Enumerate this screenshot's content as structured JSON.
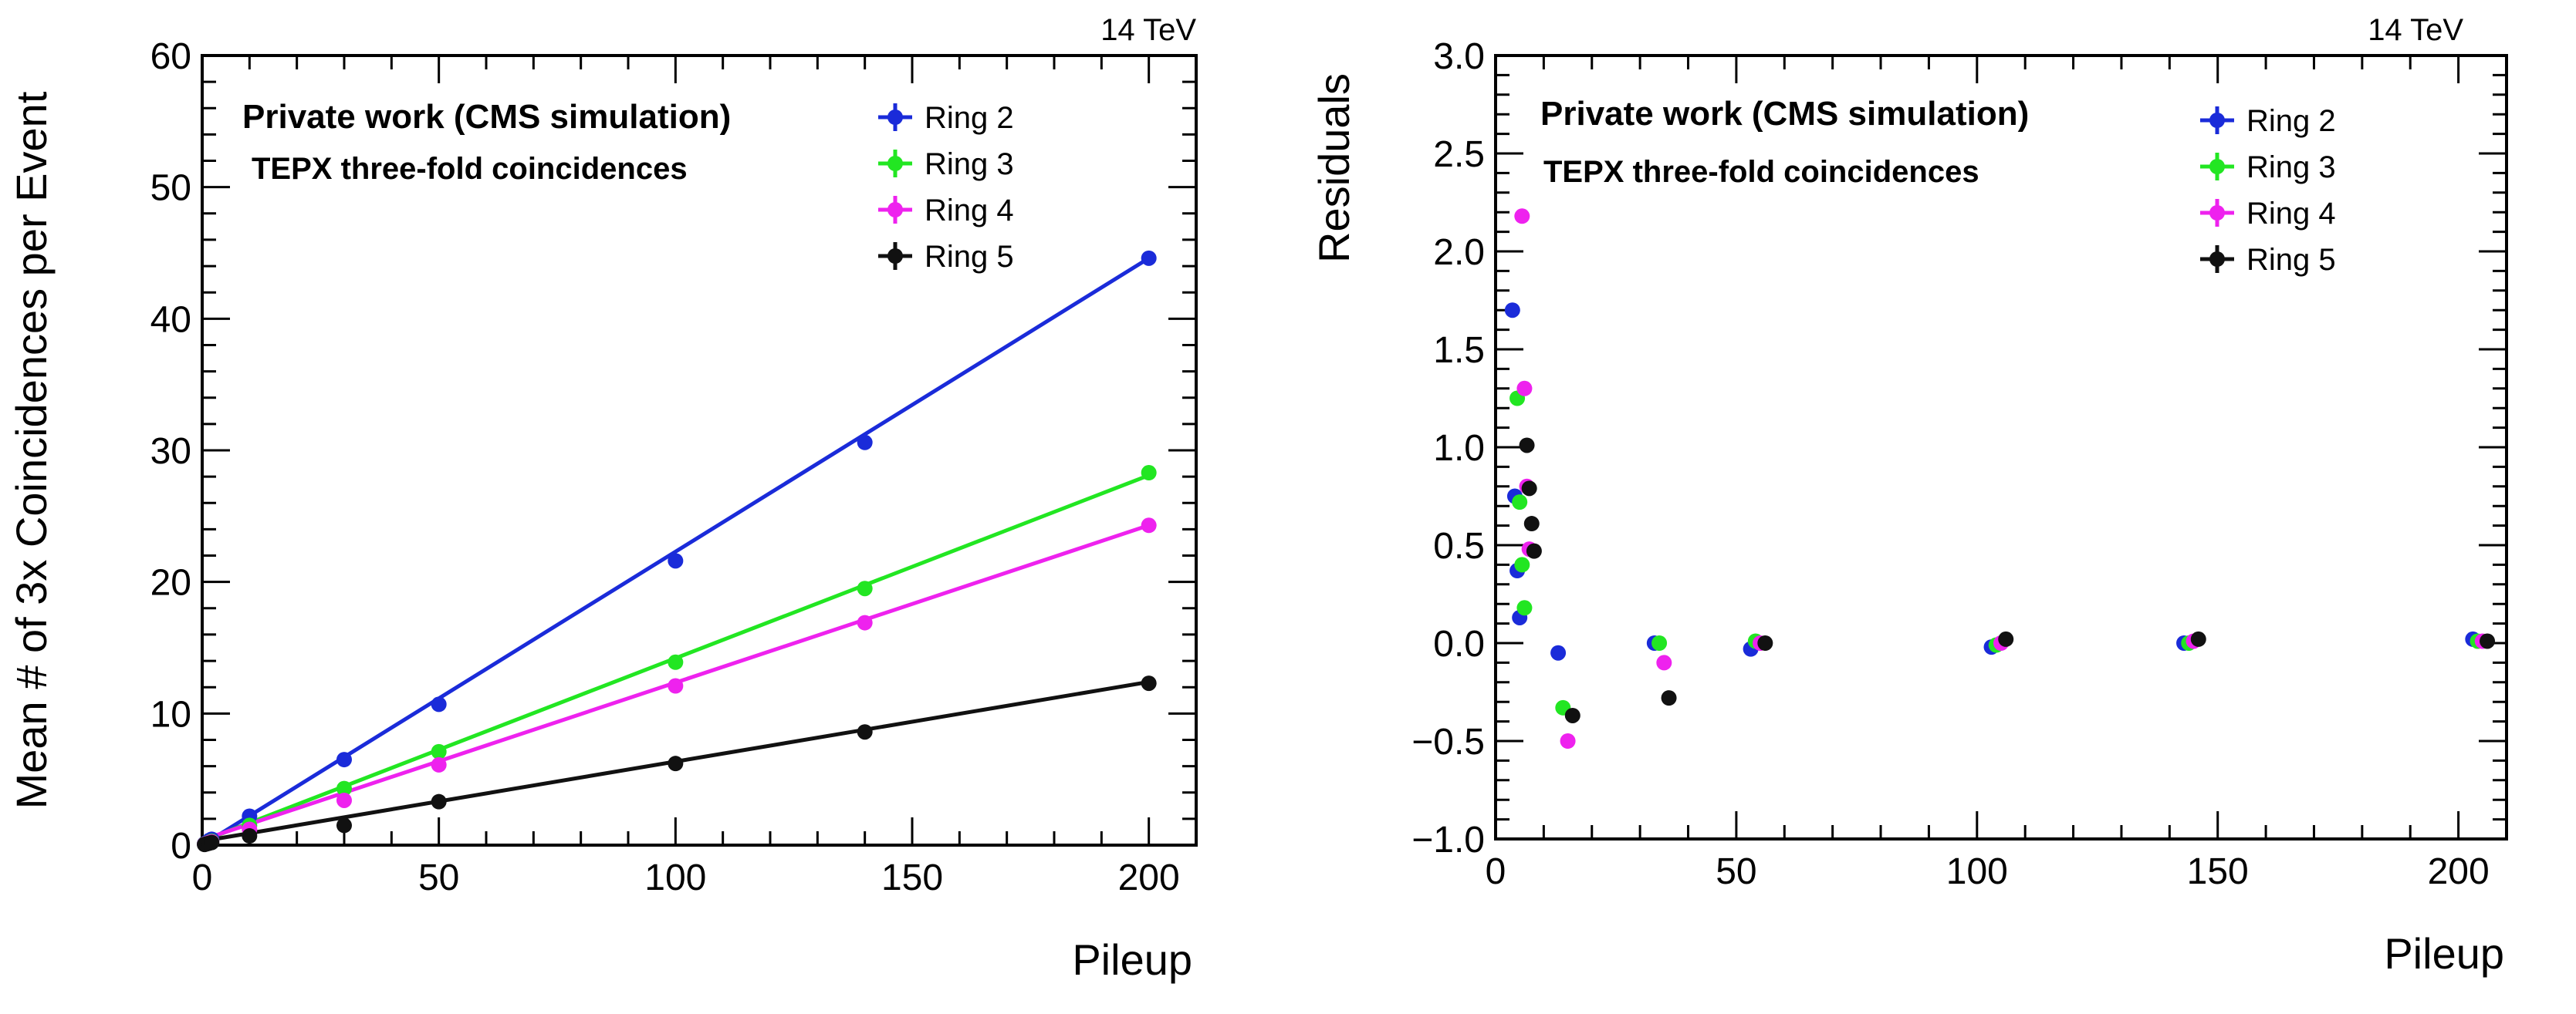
{
  "colors": {
    "ring2": "#1a2bd9",
    "ring3": "#22e622",
    "ring4": "#ee22ee",
    "ring5": "#111111"
  },
  "chart_data": [
    {
      "type": "scatter",
      "energy_label": "14 TeV",
      "notes": [
        "Private work (CMS simulation)",
        "TEPX three-fold coincidences"
      ],
      "xlabel": "Pileup",
      "ylabel": "Mean # of 3x Coincidences per Event",
      "xlim": [
        0,
        210
      ],
      "ylim": [
        0,
        60
      ],
      "xticks": [
        0,
        50,
        100,
        150,
        200
      ],
      "yticks": [
        0,
        10,
        20,
        30,
        40,
        50,
        60
      ],
      "legend_position": "top-right",
      "fit_lines": true,
      "series": [
        {
          "name": "Ring 2",
          "color_key": "ring2",
          "x": [
            0.5,
            1,
            1.5,
            2,
            10,
            30,
            50,
            100,
            140,
            200
          ],
          "y": [
            0.1,
            0.2,
            0.35,
            0.45,
            2.2,
            6.5,
            10.7,
            21.6,
            30.6,
            44.6
          ],
          "fit": [
            0,
            0,
            200,
            44.6
          ]
        },
        {
          "name": "Ring 3",
          "color_key": "ring3",
          "x": [
            0.5,
            1,
            1.5,
            2,
            10,
            30,
            50,
            100,
            140,
            200
          ],
          "y": [
            0.08,
            0.15,
            0.22,
            0.3,
            1.5,
            4.3,
            7.1,
            13.9,
            19.5,
            28.3
          ],
          "fit": [
            0,
            0.3,
            200,
            28.1
          ]
        },
        {
          "name": "Ring 4",
          "color_key": "ring4",
          "x": [
            0.5,
            1,
            1.5,
            2,
            10,
            30,
            50,
            100,
            140,
            200
          ],
          "y": [
            0.07,
            0.13,
            0.2,
            0.26,
            1.2,
            3.4,
            6.1,
            12.1,
            16.9,
            24.3
          ],
          "fit": [
            0,
            0.4,
            200,
            24.3
          ]
        },
        {
          "name": "Ring 5",
          "color_key": "ring5",
          "x": [
            0.5,
            1,
            1.5,
            2,
            10,
            30,
            50,
            100,
            140,
            200
          ],
          "y": [
            0.05,
            0.1,
            0.15,
            0.2,
            0.7,
            1.5,
            3.3,
            6.2,
            8.6,
            12.3
          ],
          "fit": [
            0,
            0.3,
            200,
            12.4
          ]
        }
      ]
    },
    {
      "type": "scatter",
      "energy_label": "14 TeV",
      "notes": [
        "Private work (CMS simulation)",
        "TEPX three-fold coincidences"
      ],
      "xlabel": "Pileup",
      "ylabel": "Residuals",
      "xlim": [
        0,
        210
      ],
      "ylim": [
        -1.0,
        3.0
      ],
      "xticks": [
        0,
        50,
        100,
        150,
        200
      ],
      "yticks": [
        -1.0,
        -0.5,
        0.0,
        0.5,
        1.0,
        1.5,
        2.0,
        2.5,
        3.0
      ],
      "ytick_labels": [
        "−1.0",
        "−0.5",
        "0.0",
        "0.5",
        "1.0",
        "1.5",
        "2.0",
        "2.5",
        "3.0"
      ],
      "legend_position": "top-right",
      "series": [
        {
          "name": "Ring 2",
          "color_key": "ring2",
          "x": [
            3.5,
            4,
            4.5,
            5,
            13,
            33,
            53,
            103,
            143,
            203
          ],
          "y": [
            1.7,
            0.75,
            0.37,
            0.13,
            -0.05,
            0.0,
            -0.03,
            -0.02,
            0.0,
            0.02
          ]
        },
        {
          "name": "Ring 3",
          "color_key": "ring3",
          "x": [
            4.5,
            5,
            5.5,
            6,
            14,
            34,
            54,
            104,
            144,
            204
          ],
          "y": [
            1.25,
            0.72,
            0.4,
            0.18,
            -0.33,
            0.0,
            0.01,
            -0.01,
            0.0,
            0.01
          ]
        },
        {
          "name": "Ring 4",
          "color_key": "ring4",
          "x": [
            5.5,
            6,
            6.5,
            7,
            15,
            35,
            55,
            105,
            145,
            205
          ],
          "y": [
            2.18,
            1.3,
            0.8,
            0.48,
            -0.5,
            -0.1,
            0.0,
            0.0,
            0.01,
            0.01
          ]
        },
        {
          "name": "Ring 5",
          "color_key": "ring5",
          "x": [
            6.5,
            7,
            7.5,
            8,
            16,
            36,
            56,
            106,
            146,
            206
          ],
          "y": [
            1.01,
            0.79,
            0.61,
            0.47,
            -0.37,
            -0.28,
            0.0,
            0.02,
            0.02,
            0.01
          ]
        }
      ]
    }
  ]
}
